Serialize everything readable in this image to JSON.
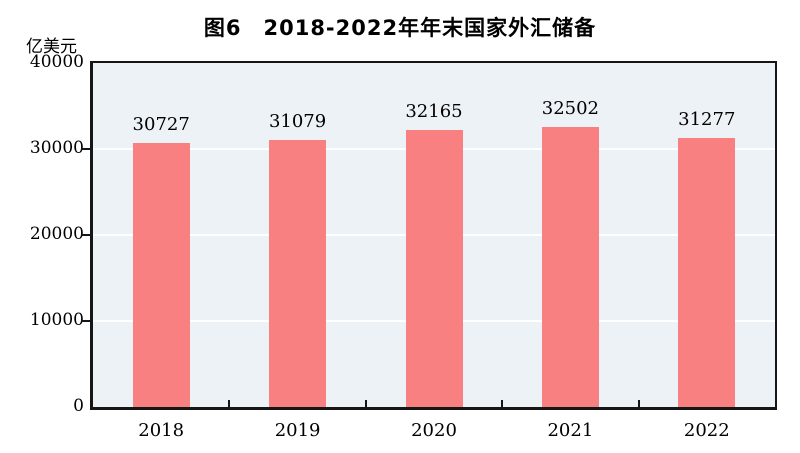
{
  "chart_data": {
    "type": "bar",
    "title": "图6　2018-2022年年末国家外汇储备",
    "unit_label": "亿美元",
    "categories": [
      "2018",
      "2019",
      "2020",
      "2021",
      "2022"
    ],
    "values": [
      30727,
      31079,
      32165,
      32502,
      31277
    ],
    "value_labels": [
      "30727",
      "31079",
      "32165",
      "32502",
      "31277"
    ],
    "ylim": [
      0,
      40000
    ],
    "y_ticks": [
      0,
      10000,
      20000,
      30000,
      40000
    ],
    "grid": "horizontal",
    "legend_position": "none",
    "colors": {
      "bar": "#f88080",
      "plot_background": "#edf2f7",
      "gridline": "#ffffff",
      "axis": "#161616",
      "text": "#000000",
      "page_background": "#ffffff"
    }
  }
}
